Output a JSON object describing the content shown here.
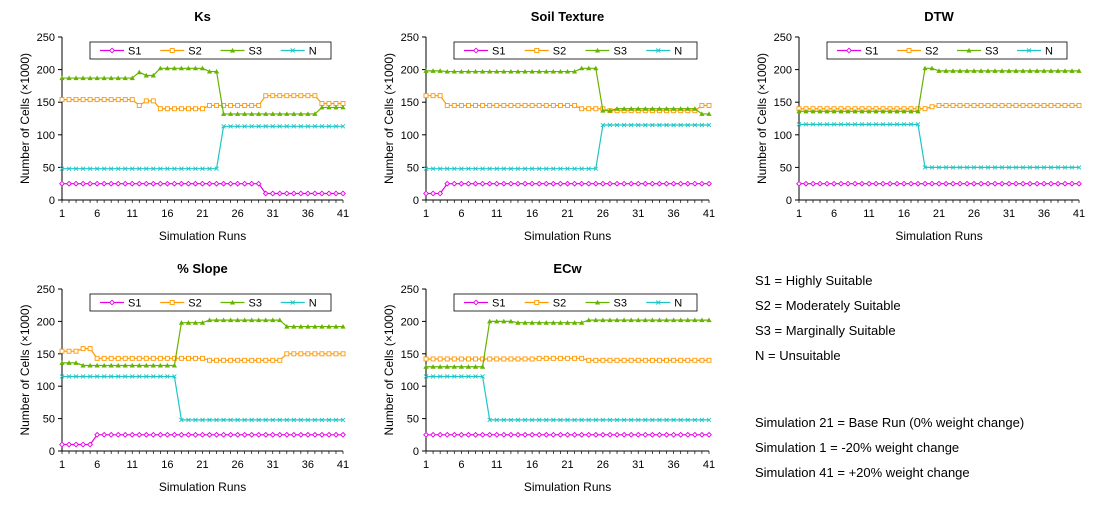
{
  "colors": {
    "S1": "#e600e6",
    "S2": "#ff9900",
    "S3": "#66b300",
    "N": "#1fc6c6"
  },
  "notes": {
    "classes": [
      "S1 = Highly Suitable",
      "S2 = Moderately Suitable",
      "S3 = Marginally Suitable",
      "N = Unsuitable"
    ],
    "simulations": [
      "Simulation 21 = Base Run (0% weight change)",
      "Simulation 1 = -20% weight change",
      "Simulation 41 = +20% weight change"
    ]
  },
  "chart_data": [
    {
      "type": "line",
      "title": "Ks",
      "xlabel": "Simulation Runs",
      "ylabel": "Number of Cells (×1000)",
      "ylim": [
        0,
        250
      ],
      "yticks": [
        0,
        50,
        100,
        150,
        200,
        250
      ],
      "xticks": [
        1,
        6,
        11,
        16,
        21,
        26,
        31,
        36,
        41
      ],
      "legend_position": "top",
      "series": [
        {
          "name": "S1",
          "values": [
            25,
            25,
            25,
            25,
            25,
            25,
            25,
            25,
            25,
            25,
            25,
            25,
            25,
            25,
            25,
            25,
            25,
            25,
            25,
            25,
            25,
            25,
            25,
            25,
            25,
            25,
            25,
            25,
            25,
            10,
            10,
            10,
            10,
            10,
            10,
            10,
            10,
            10,
            10,
            10,
            10
          ]
        },
        {
          "name": "S2",
          "values": [
            154,
            154,
            154,
            154,
            154,
            154,
            154,
            154,
            154,
            154,
            154,
            145,
            152,
            152,
            140,
            140,
            140,
            140,
            140,
            140,
            140,
            145,
            145,
            145,
            145,
            145,
            145,
            145,
            145,
            160,
            160,
            160,
            160,
            160,
            160,
            160,
            160,
            148,
            148,
            148,
            148
          ]
        },
        {
          "name": "S3",
          "values": [
            187,
            187,
            187,
            187,
            187,
            187,
            187,
            187,
            187,
            187,
            187,
            196,
            191,
            191,
            202,
            202,
            202,
            202,
            202,
            202,
            202,
            197,
            197,
            132,
            132,
            132,
            132,
            132,
            132,
            132,
            132,
            132,
            132,
            132,
            132,
            132,
            132,
            142,
            142,
            142,
            142
          ]
        },
        {
          "name": "N",
          "values": [
            48,
            48,
            48,
            48,
            48,
            48,
            48,
            48,
            48,
            48,
            48,
            48,
            48,
            48,
            48,
            48,
            48,
            48,
            48,
            48,
            48,
            48,
            48,
            113,
            113,
            113,
            113,
            113,
            113,
            113,
            113,
            113,
            113,
            113,
            113,
            113,
            113,
            113,
            113,
            113,
            113
          ]
        }
      ]
    },
    {
      "type": "line",
      "title": "Soil Texture",
      "xlabel": "Simulation Runs",
      "ylabel": "Number of Cells (×1000)",
      "ylim": [
        0,
        250
      ],
      "yticks": [
        0,
        50,
        100,
        150,
        200,
        250
      ],
      "xticks": [
        1,
        6,
        11,
        16,
        21,
        26,
        31,
        36,
        41
      ],
      "legend_position": "top",
      "series": [
        {
          "name": "S1",
          "values": [
            10,
            10,
            10,
            25,
            25,
            25,
            25,
            25,
            25,
            25,
            25,
            25,
            25,
            25,
            25,
            25,
            25,
            25,
            25,
            25,
            25,
            25,
            25,
            25,
            25,
            25,
            25,
            25,
            25,
            25,
            25,
            25,
            25,
            25,
            25,
            25,
            25,
            25,
            25,
            25,
            25
          ]
        },
        {
          "name": "S2",
          "values": [
            160,
            160,
            160,
            145,
            145,
            145,
            145,
            145,
            145,
            145,
            145,
            145,
            145,
            145,
            145,
            145,
            145,
            145,
            145,
            145,
            145,
            145,
            140,
            140,
            140,
            140,
            137,
            137,
            137,
            137,
            137,
            137,
            137,
            137,
            137,
            137,
            137,
            137,
            137,
            145,
            145
          ]
        },
        {
          "name": "S3",
          "values": [
            198,
            198,
            198,
            197,
            197,
            197,
            197,
            197,
            197,
            197,
            197,
            197,
            197,
            197,
            197,
            197,
            197,
            197,
            197,
            197,
            197,
            197,
            202,
            202,
            202,
            137,
            137,
            140,
            140,
            140,
            140,
            140,
            140,
            140,
            140,
            140,
            140,
            140,
            140,
            132,
            132
          ]
        },
        {
          "name": "N",
          "values": [
            48,
            48,
            48,
            48,
            48,
            48,
            48,
            48,
            48,
            48,
            48,
            48,
            48,
            48,
            48,
            48,
            48,
            48,
            48,
            48,
            48,
            48,
            48,
            48,
            48,
            115,
            115,
            115,
            115,
            115,
            115,
            115,
            115,
            115,
            115,
            115,
            115,
            115,
            115,
            115,
            115
          ]
        }
      ]
    },
    {
      "type": "line",
      "title": "DTW",
      "xlabel": "Simulation Runs",
      "ylabel": "Number of Cells (×1000)",
      "ylim": [
        0,
        250
      ],
      "yticks": [
        0,
        50,
        100,
        150,
        200,
        250
      ],
      "xticks": [
        1,
        6,
        11,
        16,
        21,
        26,
        31,
        36,
        41
      ],
      "legend_position": "top",
      "series": [
        {
          "name": "S1",
          "values": [
            25,
            25,
            25,
            25,
            25,
            25,
            25,
            25,
            25,
            25,
            25,
            25,
            25,
            25,
            25,
            25,
            25,
            25,
            25,
            25,
            25,
            25,
            25,
            25,
            25,
            25,
            25,
            25,
            25,
            25,
            25,
            25,
            25,
            25,
            25,
            25,
            25,
            25,
            25,
            25,
            25
          ]
        },
        {
          "name": "S2",
          "values": [
            140,
            140,
            140,
            140,
            140,
            140,
            140,
            140,
            140,
            140,
            140,
            140,
            140,
            140,
            140,
            140,
            140,
            140,
            140,
            143,
            145,
            145,
            145,
            145,
            145,
            145,
            145,
            145,
            145,
            145,
            145,
            145,
            145,
            145,
            145,
            145,
            145,
            145,
            145,
            145,
            145
          ]
        },
        {
          "name": "S3",
          "values": [
            136,
            136,
            136,
            136,
            136,
            136,
            136,
            136,
            136,
            136,
            136,
            136,
            136,
            136,
            136,
            136,
            136,
            136,
            202,
            202,
            198,
            198,
            198,
            198,
            198,
            198,
            198,
            198,
            198,
            198,
            198,
            198,
            198,
            198,
            198,
            198,
            198,
            198,
            198,
            198,
            198
          ]
        },
        {
          "name": "N",
          "values": [
            116,
            116,
            116,
            116,
            116,
            116,
            116,
            116,
            116,
            116,
            116,
            116,
            116,
            116,
            116,
            116,
            116,
            116,
            50,
            50,
            50,
            50,
            50,
            50,
            50,
            50,
            50,
            50,
            50,
            50,
            50,
            50,
            50,
            50,
            50,
            50,
            50,
            50,
            50,
            50,
            50
          ]
        }
      ]
    },
    {
      "type": "line",
      "title": "% Slope",
      "xlabel": "Simulation Runs",
      "ylabel": "Number of Cells (×1000)",
      "ylim": [
        0,
        250
      ],
      "yticks": [
        0,
        50,
        100,
        150,
        200,
        250
      ],
      "xticks": [
        1,
        6,
        11,
        16,
        21,
        26,
        31,
        36,
        41
      ],
      "legend_position": "top",
      "series": [
        {
          "name": "S1",
          "values": [
            10,
            10,
            10,
            10,
            10,
            25,
            25,
            25,
            25,
            25,
            25,
            25,
            25,
            25,
            25,
            25,
            25,
            25,
            25,
            25,
            25,
            25,
            25,
            25,
            25,
            25,
            25,
            25,
            25,
            25,
            25,
            25,
            25,
            25,
            25,
            25,
            25,
            25,
            25,
            25,
            25
          ]
        },
        {
          "name": "S2",
          "values": [
            154,
            154,
            154,
            158,
            158,
            143,
            143,
            143,
            143,
            143,
            143,
            143,
            143,
            143,
            143,
            143,
            143,
            143,
            143,
            143,
            143,
            140,
            140,
            140,
            140,
            140,
            140,
            140,
            140,
            140,
            140,
            140,
            150,
            150,
            150,
            150,
            150,
            150,
            150,
            150,
            150
          ]
        },
        {
          "name": "S3",
          "values": [
            136,
            136,
            136,
            132,
            132,
            132,
            132,
            132,
            132,
            132,
            132,
            132,
            132,
            132,
            132,
            132,
            132,
            198,
            198,
            198,
            198,
            202,
            202,
            202,
            202,
            202,
            202,
            202,
            202,
            202,
            202,
            202,
            192,
            192,
            192,
            192,
            192,
            192,
            192,
            192,
            192
          ]
        },
        {
          "name": "N",
          "values": [
            115,
            115,
            115,
            115,
            115,
            115,
            115,
            115,
            115,
            115,
            115,
            115,
            115,
            115,
            115,
            115,
            115,
            48,
            48,
            48,
            48,
            48,
            48,
            48,
            48,
            48,
            48,
            48,
            48,
            48,
            48,
            48,
            48,
            48,
            48,
            48,
            48,
            48,
            48,
            48,
            48
          ]
        }
      ]
    },
    {
      "type": "line",
      "title": "ECw",
      "xlabel": "Simulation Runs",
      "ylabel": "Number of Cells (×1000)",
      "ylim": [
        0,
        250
      ],
      "yticks": [
        0,
        50,
        100,
        150,
        200,
        250
      ],
      "xticks": [
        1,
        6,
        11,
        16,
        21,
        26,
        31,
        36,
        41
      ],
      "legend_position": "top",
      "series": [
        {
          "name": "S1",
          "values": [
            25,
            25,
            25,
            25,
            25,
            25,
            25,
            25,
            25,
            25,
            25,
            25,
            25,
            25,
            25,
            25,
            25,
            25,
            25,
            25,
            25,
            25,
            25,
            25,
            25,
            25,
            25,
            25,
            25,
            25,
            25,
            25,
            25,
            25,
            25,
            25,
            25,
            25,
            25,
            25,
            25
          ]
        },
        {
          "name": "S2",
          "values": [
            142,
            142,
            142,
            142,
            142,
            142,
            142,
            142,
            142,
            142,
            142,
            142,
            142,
            142,
            142,
            142,
            143,
            143,
            143,
            143,
            143,
            143,
            143,
            140,
            140,
            140,
            140,
            140,
            140,
            140,
            140,
            140,
            140,
            140,
            140,
            140,
            140,
            140,
            140,
            140,
            140
          ]
        },
        {
          "name": "S3",
          "values": [
            130,
            130,
            130,
            130,
            130,
            130,
            130,
            130,
            130,
            200,
            200,
            200,
            200,
            198,
            198,
            198,
            198,
            198,
            198,
            198,
            198,
            198,
            198,
            202,
            202,
            202,
            202,
            202,
            202,
            202,
            202,
            202,
            202,
            202,
            202,
            202,
            202,
            202,
            202,
            202,
            202
          ]
        },
        {
          "name": "N",
          "values": [
            115,
            115,
            115,
            115,
            115,
            115,
            115,
            115,
            115,
            48,
            48,
            48,
            48,
            48,
            48,
            48,
            48,
            48,
            48,
            48,
            48,
            48,
            48,
            48,
            48,
            48,
            48,
            48,
            48,
            48,
            48,
            48,
            48,
            48,
            48,
            48,
            48,
            48,
            48,
            48,
            48
          ]
        }
      ]
    }
  ]
}
